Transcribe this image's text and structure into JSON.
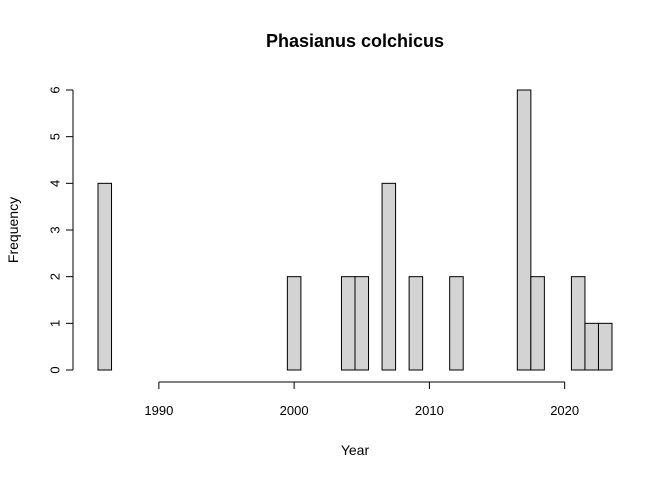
{
  "chart_data": {
    "type": "bar",
    "title": "Phasianus colchicus",
    "xlabel": "Year",
    "ylabel": "Frequency",
    "xlim": [
      1986,
      2023
    ],
    "ylim": [
      0,
      6
    ],
    "x_ticks": [
      1990,
      2000,
      2010,
      2020
    ],
    "y_ticks": [
      0,
      1,
      2,
      3,
      4,
      5,
      6
    ],
    "grid": false,
    "legend": "none",
    "bar_color": "#d3d3d3",
    "x": [
      1986,
      1987,
      1988,
      1989,
      1990,
      1991,
      1992,
      1993,
      1994,
      1995,
      1996,
      1997,
      1998,
      1999,
      2000,
      2001,
      2002,
      2003,
      2004,
      2005,
      2006,
      2007,
      2008,
      2009,
      2010,
      2011,
      2012,
      2013,
      2014,
      2015,
      2016,
      2017,
      2018,
      2019,
      2020,
      2021,
      2022,
      2023
    ],
    "values": [
      4,
      0,
      0,
      0,
      0,
      0,
      0,
      0,
      0,
      0,
      0,
      0,
      0,
      0,
      2,
      0,
      0,
      0,
      2,
      2,
      0,
      4,
      0,
      2,
      0,
      0,
      2,
      0,
      0,
      0,
      0,
      6,
      2,
      0,
      0,
      2,
      1,
      1
    ]
  }
}
